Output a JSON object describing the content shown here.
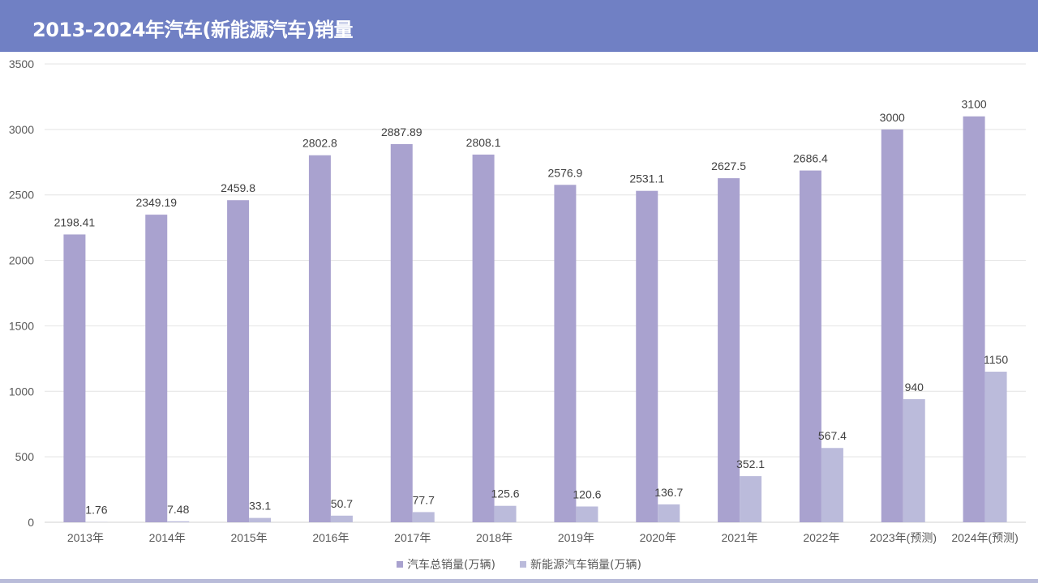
{
  "title": "2013-2024年汽车(新能源汽车)销量",
  "chart_data": {
    "type": "bar",
    "title": "2013-2024年汽车(新能源汽车)销量",
    "categories": [
      "2013年",
      "2014年",
      "2015年",
      "2016年",
      "2017年",
      "2018年",
      "2019年",
      "2020年",
      "2021年",
      "2022年",
      "2023年(预测)",
      "2024年(预测)"
    ],
    "series": [
      {
        "name": "汽车总销量(万辆)",
        "color": "#a9a2cf",
        "values": [
          2198.41,
          2349.19,
          2459.8,
          2802.8,
          2887.89,
          2808.1,
          2576.9,
          2531.1,
          2627.5,
          2686.4,
          3000,
          3100
        ],
        "labels": [
          "2198.41",
          "2349.19",
          "2459.8",
          "2802.8",
          "2887.89",
          "2808.1",
          "2576.9",
          "2531.1",
          "2627.5",
          "2686.4",
          "3000",
          "3100"
        ]
      },
      {
        "name": "新能源汽车销量(万辆)",
        "color": "#bbbbdb",
        "values": [
          1.76,
          7.48,
          33.1,
          50.7,
          77.7,
          125.6,
          120.6,
          136.7,
          352.1,
          567.4,
          940,
          1150
        ],
        "labels": [
          "1.76",
          "7.48",
          "33.1",
          "50.7",
          "77.7",
          "125.6",
          "120.6",
          "136.7",
          "352.1",
          "567.4",
          "940",
          "1150"
        ]
      }
    ],
    "ylim": [
      0,
      3500
    ],
    "yticks": [
      0,
      500,
      1000,
      1500,
      2000,
      2500,
      3000,
      3500
    ],
    "ytick_labels": [
      "0",
      "500",
      "1000",
      "1500",
      "2000",
      "2500",
      "3000",
      "3500"
    ],
    "grid": true,
    "legend_position": "bottom"
  }
}
